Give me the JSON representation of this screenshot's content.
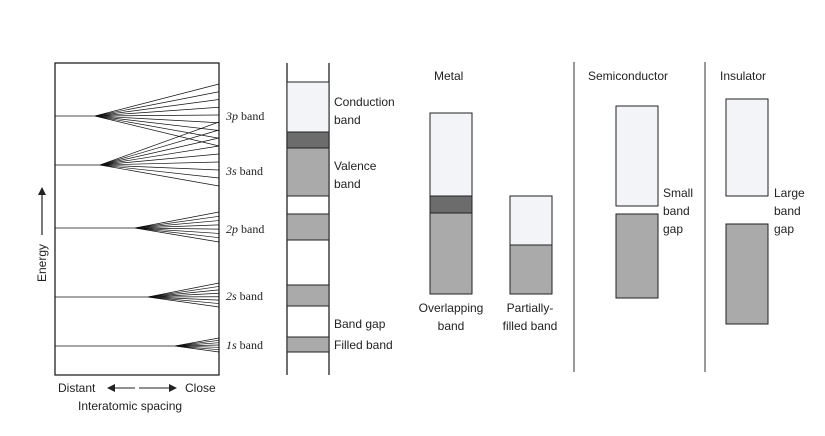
{
  "colors": {
    "empty_band": "#f3f4f8",
    "filled_band": "#a9aaa9",
    "overlap_band": "#6b6c6b",
    "line": "#222222"
  },
  "fan_panel": {
    "levels": [
      {
        "italic": "3p",
        "suffix": " band"
      },
      {
        "italic": "3s",
        "suffix": " band"
      },
      {
        "italic": "2p",
        "suffix": " band"
      },
      {
        "italic": "2s",
        "suffix": " band"
      },
      {
        "italic": "1s",
        "suffix": " band"
      }
    ],
    "y_axis_label": "Energy",
    "x_axis_left": "Distant",
    "x_axis_right": "Close",
    "x_axis_label": "Interatomic spacing"
  },
  "band_column": {
    "labels": {
      "conduction_1": "Conduction",
      "conduction_2": "band",
      "valence_1": "Valence",
      "valence_2": "band",
      "band_gap": "Band gap",
      "filled_band": "Filled band"
    }
  },
  "metal": {
    "title": "Metal",
    "overlapping_1": "Overlapping",
    "overlapping_2": "band",
    "partial_1": "Partially-",
    "partial_2": "filled band"
  },
  "semiconductor": {
    "title": "Semiconductor",
    "gap_1": "Small",
    "gap_2": "band",
    "gap_3": "gap"
  },
  "insulator": {
    "title": "Insulator",
    "gap_1": "Large",
    "gap_2": "band",
    "gap_3": "gap"
  }
}
